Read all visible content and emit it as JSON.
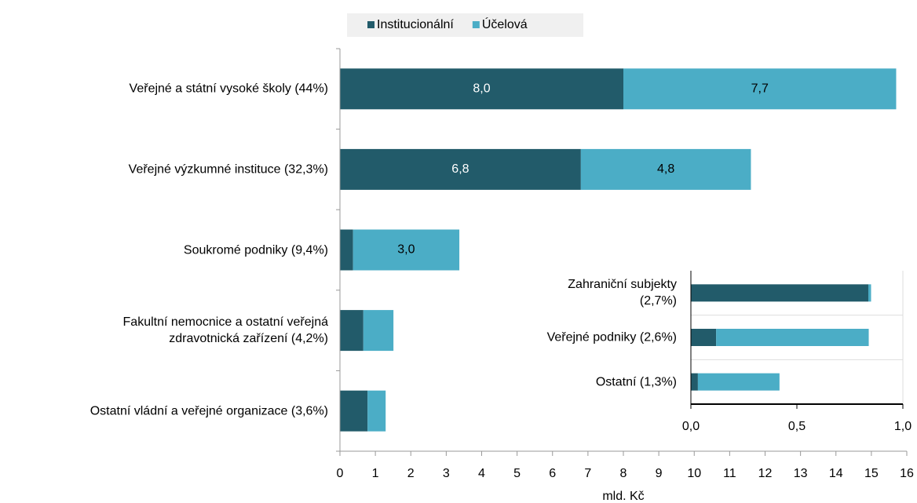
{
  "chart_data": [
    {
      "type": "bar",
      "orientation": "horizontal",
      "stacked": true,
      "categories": [
        "Veřejné a státní vysoké školy (44%)",
        "Veřejné výzkumné instituce (32,3%)",
        "Soukromé podniky (9,4%)",
        "Fakultní nemocnice a ostatní veřejná\nzdravotnická zařízení (4,2%)",
        "Ostatní vládní a veřejné organizace (3,6%)"
      ],
      "series": [
        {
          "name": "Institucionální",
          "color": "#225b6a",
          "values": [
            8.0,
            6.8,
            0.37,
            0.66,
            0.78
          ],
          "value_labels": [
            "8,0",
            "6,8",
            null,
            null,
            null
          ]
        },
        {
          "name": "Účelová",
          "color": "#4badc6",
          "values": [
            7.7,
            4.8,
            3.0,
            0.85,
            0.51
          ],
          "value_labels": [
            "7,7",
            "4,8",
            "3,0",
            null,
            null
          ]
        }
      ],
      "xlim": [
        0,
        16
      ],
      "xticks": [
        0,
        1,
        2,
        3,
        4,
        5,
        6,
        7,
        8,
        9,
        10,
        11,
        12,
        13,
        14,
        15,
        16
      ],
      "xlabel": "mld. Kč",
      "legend": "top"
    },
    {
      "type": "bar",
      "orientation": "horizontal",
      "stacked": true,
      "categories": [
        "Zahraniční subjekty\n(2,7%)",
        "Veřejné podniky (2,6%)",
        "Ostatní (1,3%)"
      ],
      "series": [
        {
          "color": "#225b6a",
          "values": [
            0.837,
            0.119,
            0.033
          ]
        },
        {
          "color": "#4badc6",
          "values": [
            0.013,
            0.72,
            0.385
          ]
        }
      ],
      "xlim": [
        0,
        1
      ],
      "xticks": [
        {
          "value": 0,
          "label": "0,0"
        },
        {
          "value": 0.5,
          "label": "0,5"
        },
        {
          "value": 1,
          "label": "1,0"
        }
      ]
    }
  ]
}
